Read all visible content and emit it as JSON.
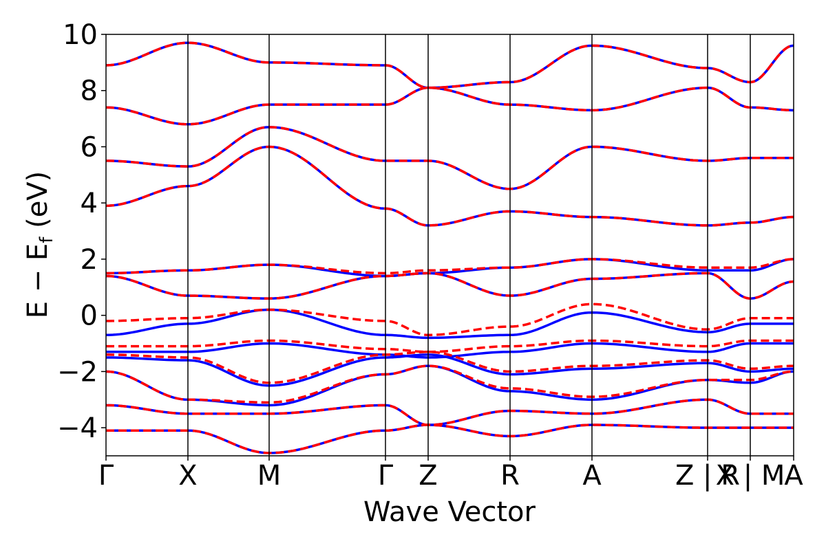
{
  "chart_data": {
    "type": "line",
    "title": "",
    "xlabel": "Wave Vector",
    "ylabel": "E − E_f (eV)",
    "ylabel_main": "E − E",
    "ylabel_sub": "f",
    "ylabel_tail": " (eV)",
    "ylim": [
      -5,
      10
    ],
    "yticks": [
      -4,
      -2,
      0,
      2,
      4,
      6,
      8,
      10
    ],
    "ytick_labels": [
      "−4",
      "−2",
      "0",
      "2",
      "4",
      "6",
      "8",
      "10"
    ],
    "high_symmetry_labels": [
      "Γ",
      "X",
      "M",
      "Γ",
      "Z",
      "R",
      "A",
      "Z | R",
      "X | M",
      "A"
    ],
    "segments": [
      {
        "from": "Γ",
        "to": "X"
      },
      {
        "from": "X",
        "to": "M"
      },
      {
        "from": "M",
        "to": "Γ"
      },
      {
        "from": "Γ",
        "to": "Z"
      },
      {
        "from": "Z",
        "to": "R"
      },
      {
        "from": "R",
        "to": "A"
      },
      {
        "from": "A",
        "to": "Z"
      },
      {
        "from": "R",
        "to": "X"
      },
      {
        "from": "M",
        "to": "A"
      }
    ],
    "grid": false,
    "legend": "none",
    "series_styles": [
      {
        "color": "#0000ff",
        "style": "solid"
      },
      {
        "color": "#ff0000",
        "style": "dashed"
      }
    ],
    "bands_blue": [
      {
        "x": [
          0,
          1,
          2,
          3,
          4,
          5,
          6,
          7,
          8,
          9
        ],
        "y": [
          -4.1,
          -4.1,
          -4.9,
          -4.1,
          -3.9,
          -4.3,
          -3.9,
          -4.0,
          -4.0,
          -4.0
        ]
      },
      {
        "x": [
          0,
          1,
          2,
          3,
          4,
          5,
          6,
          7,
          8,
          9
        ],
        "y": [
          -3.2,
          -3.5,
          -3.5,
          -3.2,
          -3.9,
          -3.4,
          -3.5,
          -3.0,
          -3.5,
          -3.5
        ]
      },
      {
        "x": [
          0,
          1,
          2,
          3,
          4,
          5,
          6,
          7,
          8,
          9
        ],
        "y": [
          -2.0,
          -3.0,
          -3.2,
          -2.1,
          -1.8,
          -2.7,
          -3.0,
          -2.3,
          -2.4,
          -2.0
        ]
      },
      {
        "x": [
          0,
          1,
          2,
          3,
          4,
          5,
          6,
          7,
          8,
          9
        ],
        "y": [
          -1.5,
          -1.6,
          -2.5,
          -1.5,
          -1.4,
          -2.1,
          -1.9,
          -1.7,
          -2.0,
          -1.9
        ]
      },
      {
        "x": [
          0,
          1,
          2,
          3,
          4,
          5,
          6,
          7,
          8,
          9
        ],
        "y": [
          -1.3,
          -1.3,
          -1.0,
          -1.4,
          -1.5,
          -1.3,
          -1.0,
          -1.3,
          -1.0,
          -1.0
        ]
      },
      {
        "x": [
          0,
          1,
          2,
          3,
          4,
          5,
          6,
          7,
          8,
          9
        ],
        "y": [
          -0.7,
          -0.3,
          0.2,
          -0.7,
          -0.8,
          -0.7,
          0.1,
          -0.6,
          -0.3,
          -0.3
        ]
      },
      {
        "x": [
          0,
          1,
          2,
          3,
          4,
          5,
          6,
          7,
          8,
          9
        ],
        "y": [
          1.4,
          0.7,
          0.6,
          1.4,
          1.5,
          0.7,
          1.3,
          1.5,
          0.6,
          1.2
        ]
      },
      {
        "x": [
          0,
          1,
          2,
          3,
          4,
          5,
          6,
          7,
          8,
          9
        ],
        "y": [
          1.5,
          1.6,
          1.8,
          1.4,
          1.5,
          1.7,
          2.0,
          1.6,
          1.6,
          2.0
        ]
      },
      {
        "x": [
          0,
          1,
          2,
          3,
          4,
          5,
          6,
          7,
          8,
          9
        ],
        "y": [
          3.9,
          4.6,
          6.0,
          3.8,
          3.2,
          3.7,
          3.5,
          3.2,
          3.3,
          3.5
        ]
      },
      {
        "x": [
          0,
          1,
          2,
          3,
          4,
          5,
          6,
          7,
          8,
          9
        ],
        "y": [
          5.5,
          5.3,
          6.7,
          5.5,
          5.5,
          4.5,
          6.0,
          5.5,
          5.6,
          5.6
        ]
      },
      {
        "x": [
          0,
          1,
          2,
          3,
          4,
          5,
          6,
          7,
          8,
          9
        ],
        "y": [
          7.4,
          6.8,
          7.5,
          7.5,
          8.1,
          7.5,
          7.3,
          8.1,
          7.4,
          7.3
        ]
      },
      {
        "x": [
          0,
          1,
          2,
          3,
          4,
          5,
          6,
          7,
          8,
          9
        ],
        "y": [
          8.9,
          9.7,
          9.0,
          8.9,
          8.1,
          8.3,
          9.6,
          8.8,
          8.3,
          9.6
        ]
      }
    ],
    "bands_red": [
      {
        "x": [
          0,
          1,
          2,
          3,
          4,
          5,
          6,
          7,
          8,
          9
        ],
        "y": [
          -4.1,
          -4.1,
          -4.9,
          -4.1,
          -3.9,
          -4.3,
          -3.9,
          -4.0,
          -4.0,
          -4.0
        ]
      },
      {
        "x": [
          0,
          1,
          2,
          3,
          4,
          5,
          6,
          7,
          8,
          9
        ],
        "y": [
          -3.2,
          -3.5,
          -3.5,
          -3.2,
          -3.9,
          -3.4,
          -3.5,
          -3.0,
          -3.5,
          -3.5
        ]
      },
      {
        "x": [
          0,
          1,
          2,
          3,
          4,
          5,
          6,
          7,
          8,
          9
        ],
        "y": [
          -2.0,
          -3.0,
          -3.1,
          -2.1,
          -1.8,
          -2.6,
          -2.9,
          -2.3,
          -2.3,
          -2.0
        ]
      },
      {
        "x": [
          0,
          1,
          2,
          3,
          4,
          5,
          6,
          7,
          8,
          9
        ],
        "y": [
          -1.4,
          -1.5,
          -2.4,
          -1.4,
          -1.3,
          -2.0,
          -1.8,
          -1.6,
          -1.9,
          -1.8
        ]
      },
      {
        "x": [
          0,
          1,
          2,
          3,
          4,
          5,
          6,
          7,
          8,
          9
        ],
        "y": [
          -1.1,
          -1.1,
          -0.9,
          -1.2,
          -1.3,
          -1.1,
          -0.9,
          -1.1,
          -0.9,
          -0.9
        ]
      },
      {
        "x": [
          0,
          1,
          2,
          3,
          4,
          5,
          6,
          7,
          8,
          9
        ],
        "y": [
          -0.2,
          -0.1,
          0.2,
          -0.2,
          -0.7,
          -0.4,
          0.4,
          -0.5,
          -0.1,
          -0.1
        ]
      },
      {
        "x": [
          0,
          1,
          2,
          3,
          4,
          5,
          6,
          7,
          8,
          9
        ],
        "y": [
          1.4,
          0.7,
          0.6,
          1.4,
          1.5,
          0.7,
          1.3,
          1.5,
          0.6,
          1.2
        ]
      },
      {
        "x": [
          0,
          1,
          2,
          3,
          4,
          5,
          6,
          7,
          8,
          9
        ],
        "y": [
          1.5,
          1.6,
          1.8,
          1.5,
          1.6,
          1.7,
          2.0,
          1.7,
          1.7,
          2.0
        ]
      },
      {
        "x": [
          0,
          1,
          2,
          3,
          4,
          5,
          6,
          7,
          8,
          9
        ],
        "y": [
          3.9,
          4.6,
          6.0,
          3.8,
          3.2,
          3.7,
          3.5,
          3.2,
          3.3,
          3.5
        ]
      },
      {
        "x": [
          0,
          1,
          2,
          3,
          4,
          5,
          6,
          7,
          8,
          9
        ],
        "y": [
          5.5,
          5.3,
          6.7,
          5.5,
          5.5,
          4.5,
          6.0,
          5.5,
          5.6,
          5.6
        ]
      },
      {
        "x": [
          0,
          1,
          2,
          3,
          4,
          5,
          6,
          7,
          8,
          9
        ],
        "y": [
          7.4,
          6.8,
          7.5,
          7.5,
          8.1,
          7.5,
          7.3,
          8.1,
          7.4,
          7.3
        ]
      },
      {
        "x": [
          0,
          1,
          2,
          3,
          4,
          5,
          6,
          7,
          8,
          9
        ],
        "y": [
          8.9,
          9.7,
          9.0,
          8.9,
          8.1,
          8.3,
          9.6,
          8.8,
          8.3,
          9.6
        ]
      }
    ]
  }
}
